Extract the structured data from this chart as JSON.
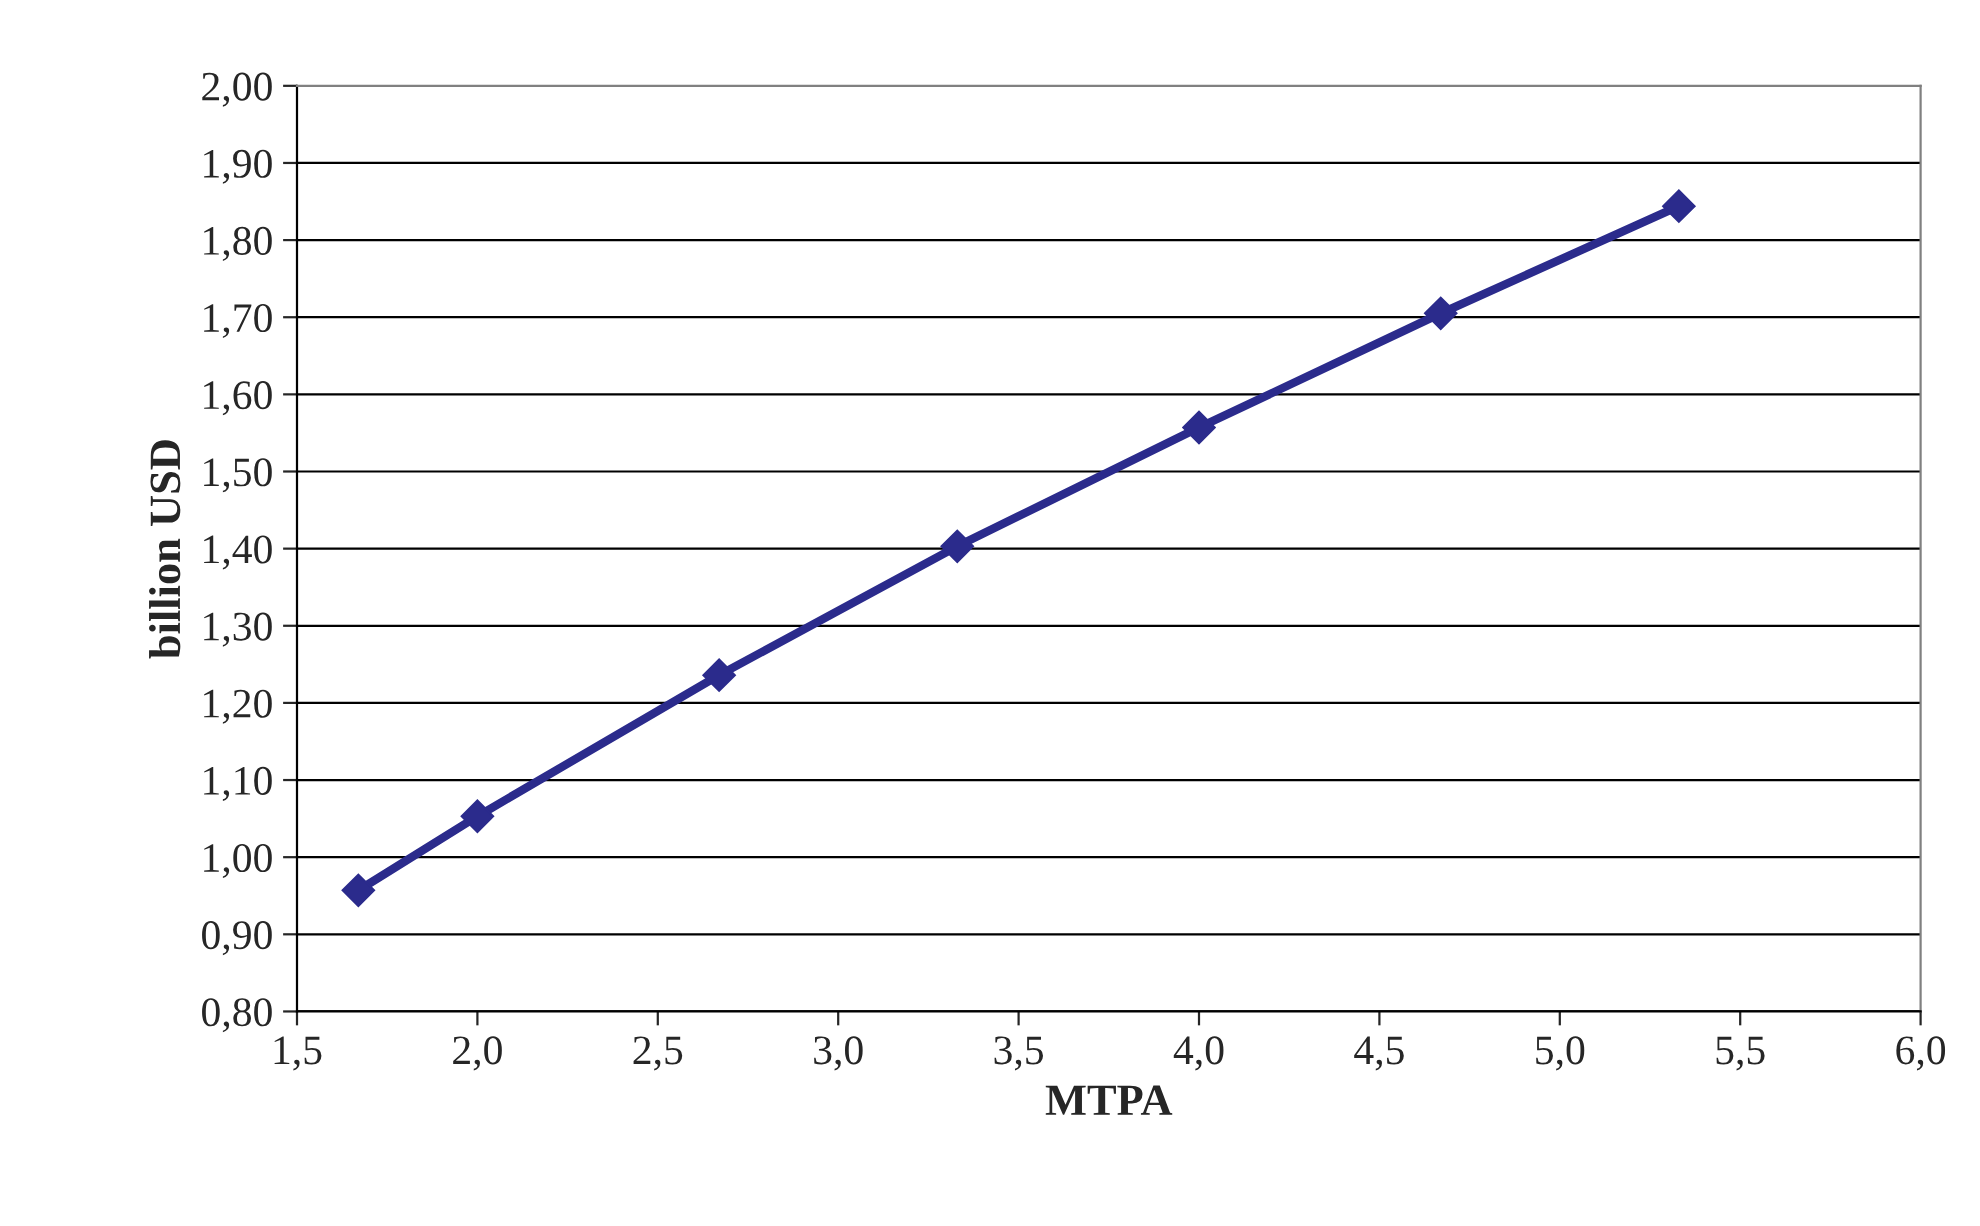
{
  "chart_data": {
    "type": "line",
    "xlabel": "MTPA",
    "ylabel": "billion USD",
    "x": [
      1.67,
      2.0,
      2.67,
      3.33,
      4.0,
      4.67,
      5.33
    ],
    "series": [
      {
        "color": "#2b2b8c",
        "values": [
          0.957,
          1.053,
          1.236,
          1.403,
          1.557,
          1.705,
          1.844
        ]
      }
    ],
    "xlim": [
      1.5,
      6.0
    ],
    "xticks": [
      {
        "value": 1.5,
        "label": "1,5"
      },
      {
        "value": 2.0,
        "label": "2,0"
      },
      {
        "value": 2.5,
        "label": "2,5"
      },
      {
        "value": 3.0,
        "label": "3,0"
      },
      {
        "value": 3.5,
        "label": "3,5"
      },
      {
        "value": 4.0,
        "label": "4,0"
      },
      {
        "value": 4.5,
        "label": "4,5"
      },
      {
        "value": 5.0,
        "label": "5,0"
      },
      {
        "value": 5.5,
        "label": "5,5"
      },
      {
        "value": 6.0,
        "label": "6,0"
      }
    ],
    "ylim": [
      0.8,
      2.0
    ],
    "yticks": [
      {
        "value": 0.8,
        "label": "0,80"
      },
      {
        "value": 0.9,
        "label": "0,90"
      },
      {
        "value": 1.0,
        "label": "1,00"
      },
      {
        "value": 1.1,
        "label": "1,10"
      },
      {
        "value": 1.2,
        "label": "1,20"
      },
      {
        "value": 1.3,
        "label": "1,30"
      },
      {
        "value": 1.4,
        "label": "1,40"
      },
      {
        "value": 1.5,
        "label": "1,50"
      },
      {
        "value": 1.6,
        "label": "1,60"
      },
      {
        "value": 1.7,
        "label": "1,70"
      },
      {
        "value": 1.8,
        "label": "1,80"
      },
      {
        "value": 1.9,
        "label": "1,90"
      },
      {
        "value": 2.0,
        "label": "2,00"
      }
    ],
    "grid": "y",
    "marker": "diamond",
    "line_style": "solid"
  }
}
